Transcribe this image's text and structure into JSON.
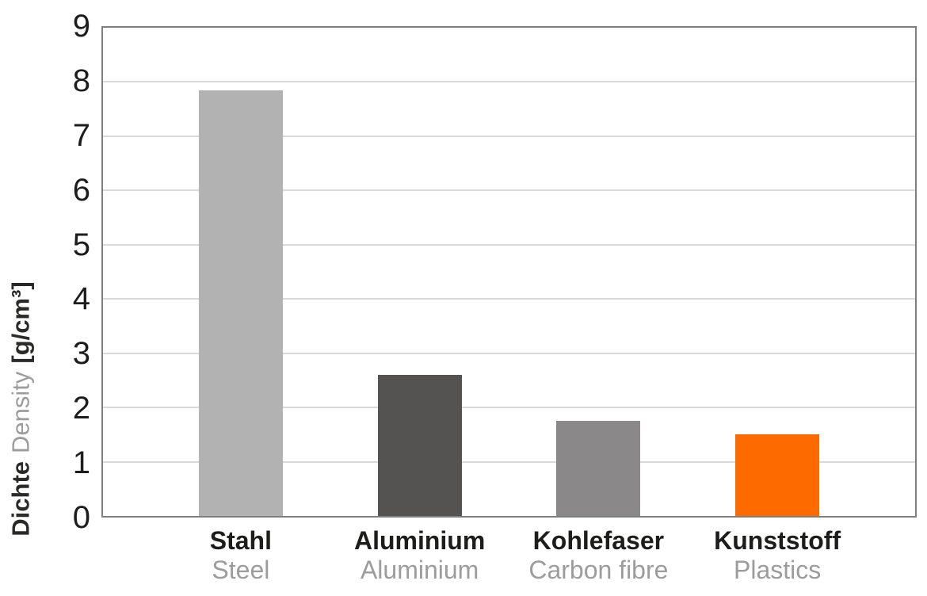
{
  "chart_data": {
    "type": "bar",
    "title": "",
    "ylabel": "Dichte Density [g/cm³]",
    "ylabel_de": "Dichte",
    "ylabel_en": "Density",
    "ylabel_unit": "[g/cm³]",
    "ylim": [
      0,
      9
    ],
    "yticks": [
      0,
      1,
      2,
      3,
      4,
      5,
      6,
      7,
      8,
      9
    ],
    "grid": "horizontal",
    "legend": "none",
    "categories": [
      "Stahl",
      "Aluminium",
      "Kohlefaser",
      "Kunststoff"
    ],
    "categories_en": [
      "Steel",
      "Aluminium",
      "Carbon fibre",
      "Plastics"
    ],
    "values": [
      7.85,
      2.6,
      1.75,
      1.5
    ],
    "bar_colors": [
      "#b3b2b2",
      "#555252",
      "#8a8888",
      "#fc6a00"
    ]
  },
  "colors": {
    "background": "#ffffff",
    "plot_border": "#7f7f7f",
    "gridline": "#d9d9d9",
    "tick_label": "#1d1d1d",
    "label_primary": "#1d1d1b",
    "label_secondary": "#9d9c9c"
  }
}
